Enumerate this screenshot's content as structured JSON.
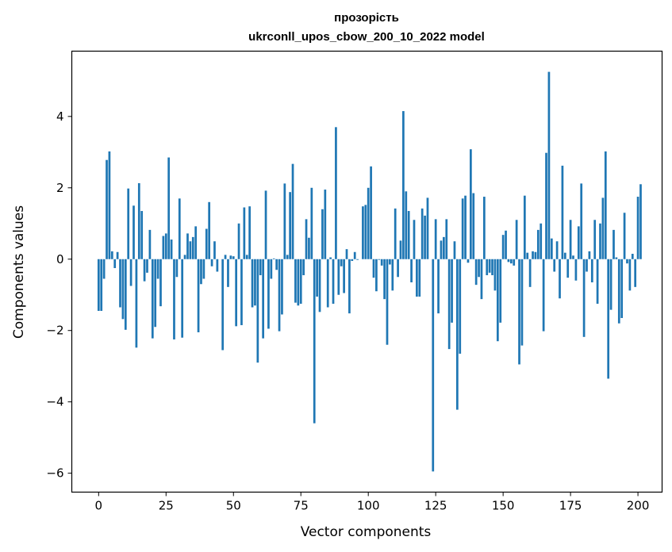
{
  "chart_data": {
    "type": "bar",
    "title": "прозорість",
    "subtitle": "ukrconll_upos_cbow_200_10_2022 model",
    "xlabel": "Vector components",
    "ylabel": "Components values",
    "xlim": [
      -9.95,
      208.95
    ],
    "ylim": [
      -6.53,
      5.83
    ],
    "xticks": [
      0,
      25,
      50,
      75,
      100,
      125,
      150,
      175,
      200
    ],
    "yticks": [
      -6,
      -4,
      -2,
      0,
      2,
      4
    ],
    "yticklabels": [
      "−6",
      "−4",
      "−2",
      "0",
      "2",
      "4"
    ],
    "bar_color": "#1f77b4",
    "values": [
      -1.45,
      -1.45,
      -0.55,
      2.78,
      3.02,
      0.22,
      -0.25,
      0.2,
      -1.35,
      -1.68,
      -1.98,
      1.98,
      -0.75,
      1.5,
      -2.48,
      2.13,
      1.35,
      -0.62,
      -0.38,
      0.82,
      -2.22,
      -1.9,
      -0.55,
      -1.32,
      0.65,
      0.72,
      2.85,
      0.55,
      -2.25,
      -0.5,
      1.7,
      -2.2,
      0.12,
      0.72,
      0.5,
      0.62,
      0.92,
      -2.05,
      -0.7,
      -0.55,
      0.85,
      1.6,
      -0.2,
      0.5,
      -0.35,
      0.0,
      -2.55,
      0.12,
      -0.78,
      0.1,
      0.08,
      -1.88,
      1.0,
      -1.85,
      1.45,
      0.12,
      1.48,
      -1.35,
      -1.3,
      -2.9,
      -0.45,
      -2.22,
      1.92,
      -1.95,
      -0.55,
      0.02,
      -0.3,
      -2.02,
      -1.55,
      2.12,
      0.12,
      1.88,
      2.67,
      -1.22,
      -1.3,
      -1.25,
      -0.45,
      1.12,
      0.6,
      2.0,
      -4.6,
      -1.05,
      -1.48,
      1.4,
      1.95,
      -1.35,
      0.05,
      -1.25,
      3.7,
      -1.0,
      -0.2,
      -0.95,
      0.28,
      -1.52,
      -0.05,
      0.2,
      -0.02,
      0.0,
      1.48,
      1.52,
      2.0,
      2.6,
      -0.52,
      -0.9,
      -0.02,
      -0.18,
      -1.12,
      -2.4,
      -0.15,
      -0.88,
      1.42,
      -0.5,
      0.52,
      4.15,
      1.9,
      1.35,
      -0.65,
      1.1,
      -1.05,
      -1.05,
      1.42,
      1.22,
      1.72,
      0.0,
      -5.95,
      1.12,
      -1.52,
      0.52,
      0.62,
      1.12,
      -2.52,
      -1.78,
      0.5,
      -4.22,
      -2.65,
      1.7,
      1.78,
      -0.1,
      3.08,
      1.85,
      -0.72,
      -0.5,
      -1.12,
      1.75,
      -0.45,
      -0.38,
      -0.45,
      -0.88,
      -2.3,
      -1.78,
      0.68,
      0.8,
      -0.08,
      -0.12,
      -0.18,
      1.1,
      -2.95,
      -2.42,
      1.78,
      0.18,
      -0.78,
      0.22,
      0.2,
      0.82,
      1.0,
      -2.02,
      2.98,
      5.25,
      0.58,
      -0.35,
      0.5,
      -1.1,
      2.62,
      0.18,
      -0.52,
      1.1,
      0.1,
      -0.6,
      0.92,
      2.12,
      -2.18,
      -0.35,
      0.22,
      -0.65,
      1.1,
      -1.25,
      1.0,
      1.72,
      3.02,
      -3.35,
      -1.42,
      0.82,
      0.05,
      -1.8,
      -1.65,
      1.3,
      -0.12,
      -0.88,
      0.15,
      -0.78,
      1.75,
      2.1
    ]
  }
}
